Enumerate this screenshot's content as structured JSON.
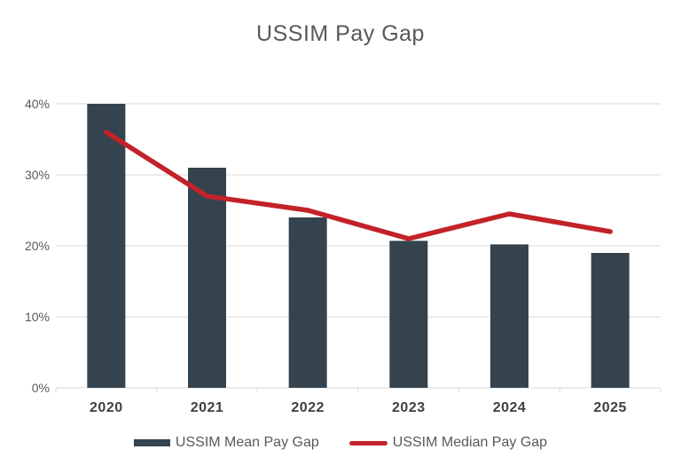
{
  "chart_data": {
    "type": "combo",
    "title": "USSIM Pay Gap",
    "categories": [
      "2020",
      "2021",
      "2022",
      "2023",
      "2024",
      "2025"
    ],
    "series": [
      {
        "name": "USSIM Mean Pay Gap",
        "type": "bar",
        "color": "#34434e",
        "values": [
          40,
          31,
          24,
          20.7,
          20.2,
          19
        ]
      },
      {
        "name": "USSIM Median Pay Gap",
        "type": "line",
        "color": "#c22328",
        "values": [
          36,
          27,
          25,
          21,
          24.5,
          22
        ]
      }
    ],
    "xlabel": "",
    "ylabel": "",
    "ylim": [
      0,
      40
    ],
    "yticks": {
      "values": [
        0,
        10,
        20,
        30,
        40
      ],
      "labels": [
        "0%",
        "10%",
        "20%",
        "30%",
        "40%"
      ]
    },
    "grid": true,
    "legend_position": "bottom"
  },
  "colors": {
    "background": "#ffffff",
    "grid": "#d9d9d9",
    "axis": "#d9d9d9",
    "title_text": "#595959",
    "ytick_text": "#595959",
    "xtick_text": "#404040",
    "legend_text": "#595959"
  }
}
